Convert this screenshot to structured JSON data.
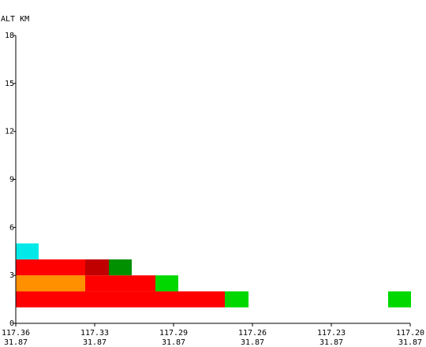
{
  "chart_data": {
    "type": "heatmap",
    "ylabel": "ALT KM",
    "y_ticks": [
      "0",
      "3",
      "6",
      "9",
      "12",
      "15",
      "18"
    ],
    "ylim": [
      0,
      18
    ],
    "x_ticks": [
      {
        "lon": "117.36",
        "lat": "31.87"
      },
      {
        "lon": "117.33",
        "lat": "31.87"
      },
      {
        "lon": "117.29",
        "lat": "31.87"
      },
      {
        "lon": "117.26",
        "lat": "31.87"
      },
      {
        "lon": "117.23",
        "lat": "31.87"
      },
      {
        "lon": "117.20",
        "lat": "31.87"
      }
    ],
    "x_index_range": [
      0,
      5
    ],
    "cells": [
      {
        "x0": 0.0,
        "x1": 2.65,
        "alt0": 1.0,
        "alt1": 2.0,
        "color": "#ff0000"
      },
      {
        "x0": 2.65,
        "x1": 2.95,
        "alt0": 1.0,
        "alt1": 2.0,
        "color": "#00d800"
      },
      {
        "x0": 4.72,
        "x1": 5.01,
        "alt0": 1.0,
        "alt1": 2.0,
        "color": "#00d800"
      },
      {
        "x0": 0.0,
        "x1": 0.88,
        "alt0": 2.0,
        "alt1": 3.0,
        "color": "#ff9000"
      },
      {
        "x0": 0.88,
        "x1": 1.77,
        "alt0": 2.0,
        "alt1": 3.0,
        "color": "#ff0000"
      },
      {
        "x0": 1.77,
        "x1": 2.06,
        "alt0": 2.0,
        "alt1": 3.0,
        "color": "#00d800"
      },
      {
        "x0": 0.0,
        "x1": 0.88,
        "alt0": 3.0,
        "alt1": 4.0,
        "color": "#ff0000"
      },
      {
        "x0": 0.88,
        "x1": 1.18,
        "alt0": 3.0,
        "alt1": 4.0,
        "color": "#c00000"
      },
      {
        "x0": 1.18,
        "x1": 1.47,
        "alt0": 3.0,
        "alt1": 4.0,
        "color": "#009000"
      },
      {
        "x0": 0.0,
        "x1": 0.29,
        "alt0": 4.0,
        "alt1": 5.0,
        "color": "#00e8e8"
      }
    ]
  }
}
